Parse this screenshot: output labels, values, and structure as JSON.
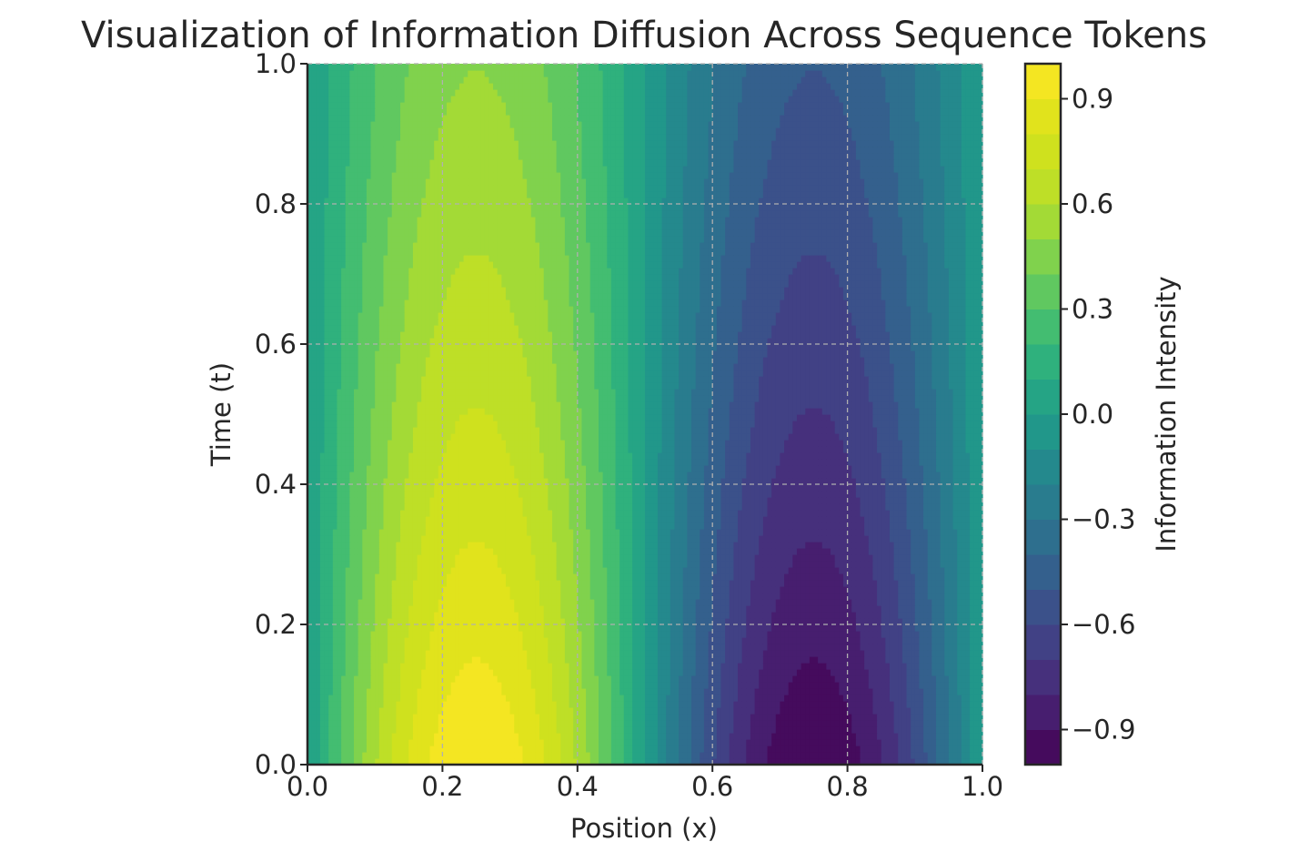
{
  "chart_data": {
    "type": "contour",
    "title": "Visualization of Information Diffusion Across Sequence Tokens",
    "xlabel": "Position (x)",
    "ylabel": "Time (t)",
    "xlim": [
      0.0,
      1.0
    ],
    "ylim": [
      0.0,
      1.0
    ],
    "x_ticks": [
      "0.0",
      "0.2",
      "0.4",
      "0.6",
      "0.8",
      "1.0"
    ],
    "y_ticks": [
      "0.0",
      "0.2",
      "0.4",
      "0.6",
      "0.8",
      "1.0"
    ],
    "grid": true,
    "colormap": "viridis",
    "colorbar": {
      "label": "Information Intensity",
      "range": [
        -1.0,
        1.0
      ],
      "levels": 20,
      "ticks": [
        "0.9",
        "0.6",
        "0.3",
        "0.0",
        "−0.3",
        "−0.6",
        "−0.9"
      ],
      "tick_values": [
        0.9,
        0.6,
        0.3,
        0.0,
        -0.3,
        -0.6,
        -0.9
      ]
    },
    "field": {
      "peak_x": 0.25,
      "trough_x": 0.75,
      "value_at_t0_peak": 1.0,
      "value_at_t1_peak": 0.5,
      "description_function": "sin(2*pi*x)*exp(-0.7*t)"
    },
    "colors": {
      "axis": "#262626",
      "grid": "#b0b0b0",
      "viridis_low": "#440154",
      "viridis_high": "#fde725"
    }
  }
}
